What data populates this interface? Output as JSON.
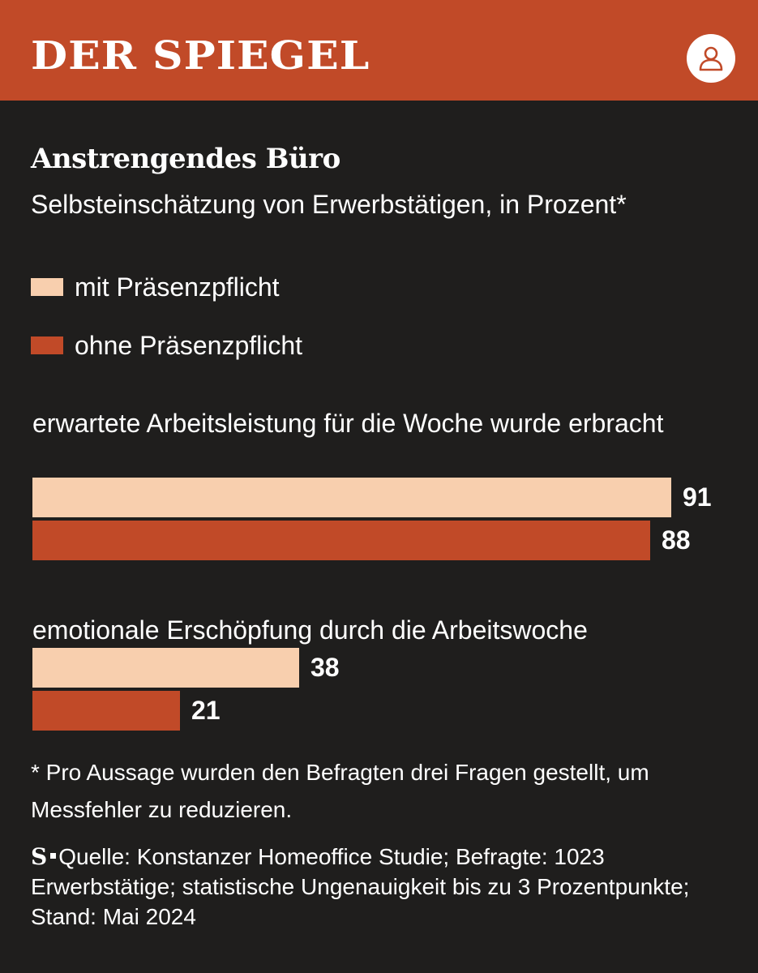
{
  "header": {
    "logo": "DER SPIEGEL",
    "account_icon": "user-icon"
  },
  "colors": {
    "brand": "#c14a28",
    "background": "#1f1e1d",
    "series_light": "#f8cfae",
    "series_dark": "#c14a28"
  },
  "chart_data": {
    "type": "bar",
    "orientation": "horizontal",
    "title": "Anstrengendes Büro",
    "subtitle": "Selbsteinschätzung von Erwerbstätigen, in Prozent*",
    "categories": [
      "erwartete Arbeitsleistung für die Woche wurde erbracht",
      "emotionale Erschöpfung durch die Arbeitswoche"
    ],
    "series": [
      {
        "name": "mit Präsenzpflicht",
        "values": [
          91,
          38
        ],
        "color": "#f8cfae"
      },
      {
        "name": "ohne Präsenzpflicht",
        "values": [
          88,
          21
        ],
        "color": "#c14a28"
      }
    ],
    "xlim": [
      0,
      100
    ],
    "grid": false,
    "legend": "top-left",
    "data_labels": true
  },
  "footnote": "* Pro Aussage wurden den Befragten drei Fragen gestellt, um Messfehler zu reduzieren.",
  "source": {
    "mark": "S",
    "text": "Quelle: Konstanzer Homeoffice Studie; Befragte: 1023 Erwerbstätige; statistische Ungenauigkeit bis zu 3 Prozentpunkte; Stand: Mai 2024"
  }
}
